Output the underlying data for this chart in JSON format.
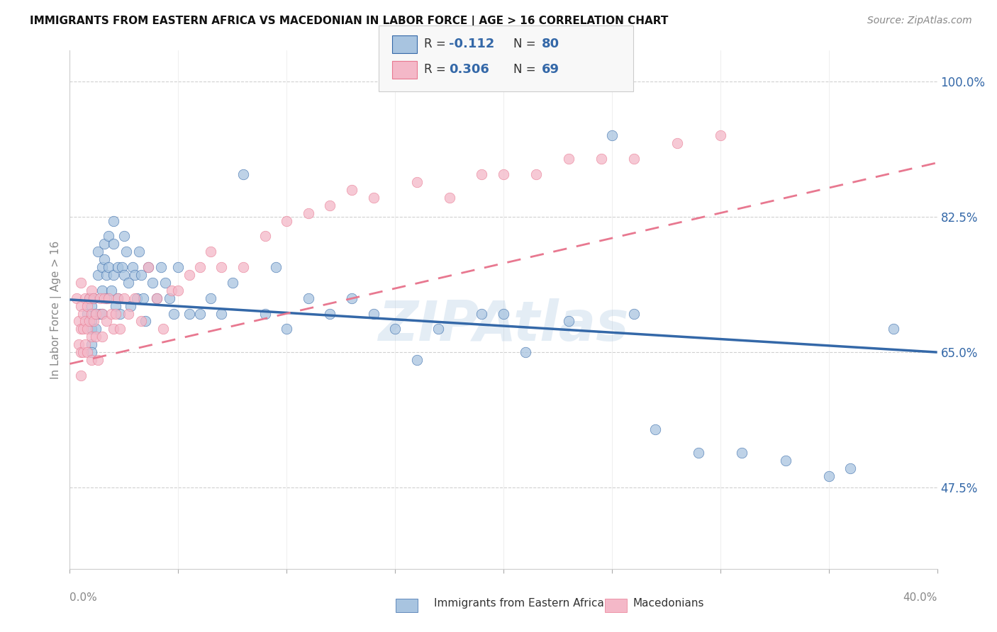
{
  "title": "IMMIGRANTS FROM EASTERN AFRICA VS MACEDONIAN IN LABOR FORCE | AGE > 16 CORRELATION CHART",
  "source": "Source: ZipAtlas.com",
  "ylabel": "In Labor Force | Age > 16",
  "ytick_labels": [
    "47.5%",
    "65.0%",
    "82.5%",
    "100.0%"
  ],
  "ytick_values": [
    0.475,
    0.65,
    0.825,
    1.0
  ],
  "xlim": [
    0.0,
    0.4
  ],
  "ylim": [
    0.37,
    1.04
  ],
  "blue_R": -0.112,
  "blue_N": 80,
  "pink_R": 0.306,
  "pink_N": 69,
  "blue_color": "#a8c4e0",
  "pink_color": "#f4b8c8",
  "blue_line_color": "#3468a8",
  "pink_line_color": "#e87890",
  "legend_label_blue": "Immigrants from Eastern Africa",
  "legend_label_pink": "Macedonians",
  "watermark": "ZIPAtlas",
  "blue_line_x0": 0.0,
  "blue_line_y0": 0.718,
  "blue_line_x1": 0.4,
  "blue_line_y1": 0.65,
  "pink_line_x0": 0.0,
  "pink_line_y0": 0.635,
  "pink_line_x1": 0.4,
  "pink_line_y1": 0.895,
  "blue_x": [
    0.008,
    0.009,
    0.01,
    0.01,
    0.01,
    0.01,
    0.01,
    0.011,
    0.012,
    0.012,
    0.013,
    0.013,
    0.014,
    0.015,
    0.015,
    0.015,
    0.016,
    0.016,
    0.017,
    0.017,
    0.018,
    0.018,
    0.019,
    0.02,
    0.02,
    0.02,
    0.021,
    0.022,
    0.022,
    0.023,
    0.024,
    0.025,
    0.025,
    0.026,
    0.027,
    0.028,
    0.029,
    0.03,
    0.031,
    0.032,
    0.033,
    0.034,
    0.035,
    0.036,
    0.038,
    0.04,
    0.042,
    0.044,
    0.046,
    0.048,
    0.05,
    0.055,
    0.06,
    0.065,
    0.07,
    0.075,
    0.08,
    0.09,
    0.095,
    0.1,
    0.11,
    0.12,
    0.13,
    0.14,
    0.15,
    0.16,
    0.17,
    0.19,
    0.2,
    0.21,
    0.23,
    0.25,
    0.26,
    0.27,
    0.29,
    0.31,
    0.33,
    0.35,
    0.36,
    0.38
  ],
  "blue_y": [
    0.7,
    0.72,
    0.71,
    0.69,
    0.68,
    0.66,
    0.65,
    0.72,
    0.7,
    0.68,
    0.78,
    0.75,
    0.7,
    0.76,
    0.73,
    0.7,
    0.79,
    0.77,
    0.75,
    0.72,
    0.8,
    0.76,
    0.73,
    0.82,
    0.79,
    0.75,
    0.71,
    0.76,
    0.72,
    0.7,
    0.76,
    0.8,
    0.75,
    0.78,
    0.74,
    0.71,
    0.76,
    0.75,
    0.72,
    0.78,
    0.75,
    0.72,
    0.69,
    0.76,
    0.74,
    0.72,
    0.76,
    0.74,
    0.72,
    0.7,
    0.76,
    0.7,
    0.7,
    0.72,
    0.7,
    0.74,
    0.88,
    0.7,
    0.76,
    0.68,
    0.72,
    0.7,
    0.72,
    0.7,
    0.68,
    0.64,
    0.68,
    0.7,
    0.7,
    0.65,
    0.69,
    0.93,
    0.7,
    0.55,
    0.52,
    0.52,
    0.51,
    0.49,
    0.5,
    0.68
  ],
  "pink_x": [
    0.003,
    0.004,
    0.004,
    0.005,
    0.005,
    0.005,
    0.005,
    0.005,
    0.006,
    0.006,
    0.006,
    0.007,
    0.007,
    0.007,
    0.008,
    0.008,
    0.008,
    0.009,
    0.009,
    0.01,
    0.01,
    0.01,
    0.01,
    0.011,
    0.011,
    0.012,
    0.012,
    0.013,
    0.014,
    0.015,
    0.015,
    0.016,
    0.017,
    0.018,
    0.019,
    0.02,
    0.021,
    0.022,
    0.023,
    0.025,
    0.027,
    0.03,
    0.033,
    0.036,
    0.04,
    0.043,
    0.047,
    0.05,
    0.055,
    0.06,
    0.065,
    0.07,
    0.08,
    0.09,
    0.1,
    0.11,
    0.12,
    0.13,
    0.14,
    0.16,
    0.175,
    0.19,
    0.2,
    0.215,
    0.23,
    0.245,
    0.26,
    0.28,
    0.3
  ],
  "pink_y": [
    0.72,
    0.69,
    0.66,
    0.74,
    0.71,
    0.68,
    0.65,
    0.62,
    0.7,
    0.68,
    0.65,
    0.72,
    0.69,
    0.66,
    0.71,
    0.68,
    0.65,
    0.72,
    0.69,
    0.73,
    0.7,
    0.67,
    0.64,
    0.72,
    0.69,
    0.7,
    0.67,
    0.64,
    0.72,
    0.7,
    0.67,
    0.72,
    0.69,
    0.72,
    0.7,
    0.68,
    0.7,
    0.72,
    0.68,
    0.72,
    0.7,
    0.72,
    0.69,
    0.76,
    0.72,
    0.68,
    0.73,
    0.73,
    0.75,
    0.76,
    0.78,
    0.76,
    0.76,
    0.8,
    0.82,
    0.83,
    0.84,
    0.86,
    0.85,
    0.87,
    0.85,
    0.88,
    0.88,
    0.88,
    0.9,
    0.9,
    0.9,
    0.92,
    0.93
  ]
}
